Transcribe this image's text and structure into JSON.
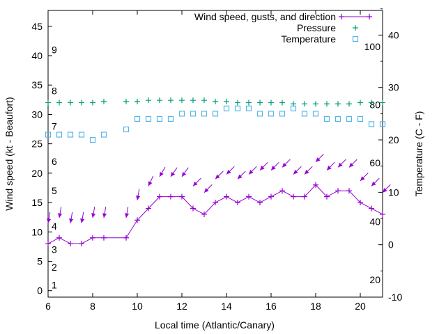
{
  "chart_data": {
    "type": "line",
    "xlabel": "Local time (Atlantic/Canary)",
    "ylabel": "Wind speed (kt - Beaufort)",
    "y2label": "Temperature (C - F)",
    "xlim": [
      6,
      21
    ],
    "ylim": [
      -1.1,
      47.7
    ],
    "y2lim": [
      -10,
      44.7
    ],
    "xticks": [
      6,
      8,
      10,
      12,
      14,
      16,
      18,
      20
    ],
    "yticks": [
      0,
      5,
      10,
      15,
      20,
      25,
      30,
      35,
      40,
      45
    ],
    "y2ticks": [
      -10,
      0,
      10,
      20,
      30,
      40
    ],
    "beaufort_labels": [
      {
        "label": "1",
        "kt": 1
      },
      {
        "label": "2",
        "kt": 4
      },
      {
        "label": "3",
        "kt": 7
      },
      {
        "label": "4",
        "kt": 11
      },
      {
        "label": "5",
        "kt": 17
      },
      {
        "label": "6",
        "kt": 22
      },
      {
        "label": "7",
        "kt": 28
      },
      {
        "label": "8",
        "kt": 34
      },
      {
        "label": "9",
        "kt": 41
      }
    ],
    "fahrenheit_labels": [
      {
        "label": "20",
        "c": -6.7
      },
      {
        "label": "40",
        "c": 4.4
      },
      {
        "label": "60",
        "c": 15.6
      },
      {
        "label": "80",
        "c": 26.7
      },
      {
        "label": "100",
        "c": 37.8
      }
    ],
    "legend": {
      "position": "top-right",
      "entries": [
        "Wind speed, gusts, and direction",
        "Pressure",
        "Temperature"
      ]
    },
    "colors": {
      "wind": "#9400d3",
      "pressure": "#009e73",
      "temperature": "#56b4e9"
    },
    "x": [
      6,
      6.5,
      7,
      7.5,
      8,
      8.5,
      9.5,
      10,
      10.5,
      11,
      11.5,
      12,
      12.5,
      13,
      13.5,
      14,
      14.5,
      15,
      15.5,
      16,
      16.5,
      17,
      17.5,
      18,
      18.5,
      19,
      19.5,
      20,
      20.5,
      21
    ],
    "series": [
      {
        "name": "Wind speed",
        "axis": "y",
        "values": [
          8,
          9,
          8,
          8,
          9,
          9,
          9,
          12,
          14,
          16,
          16,
          16,
          14,
          13,
          15,
          16,
          15,
          16,
          15,
          16,
          17,
          16,
          16,
          18,
          16,
          17,
          17,
          15,
          14,
          13
        ]
      },
      {
        "name": "Gusts",
        "axis": "y",
        "values": [
          11.5,
          12.4,
          11.5,
          11.5,
          12.4,
          12.4,
          12.4,
          15.4,
          17.8,
          19.4,
          19.4,
          19.4,
          17.8,
          16.7,
          19,
          19.8,
          19,
          19.8,
          20.5,
          20.5,
          21,
          19.8,
          19.8,
          21.9,
          20.5,
          21,
          21,
          18.7,
          17.8,
          16.7
        ]
      },
      {
        "name": "Direction",
        "unit": "deg-from",
        "values": [
          10,
          10,
          10,
          10,
          10,
          10,
          10,
          10,
          25,
          30,
          35,
          35,
          45,
          45,
          45,
          45,
          45,
          45,
          45,
          45,
          45,
          45,
          45,
          45,
          45,
          45,
          45,
          45,
          45,
          45
        ]
      },
      {
        "name": "Pressure",
        "axis": "y",
        "values": [
          32,
          32,
          32,
          32,
          32,
          32.2,
          32.2,
          32.2,
          32.4,
          32.4,
          32.4,
          32.4,
          32.4,
          32.4,
          32.2,
          32.2,
          32,
          32,
          32,
          32,
          32,
          31.8,
          31.8,
          31.8,
          31.8,
          31.8,
          31.8,
          32,
          32,
          32
        ]
      },
      {
        "name": "Temperature",
        "axis": "y2",
        "values": [
          21,
          21,
          21,
          21,
          20,
          21,
          22,
          24,
          24,
          24,
          24,
          25,
          25,
          25,
          25,
          26,
          26,
          26,
          25,
          25,
          25,
          26,
          25,
          25,
          24,
          24,
          24,
          24,
          23,
          23
        ]
      }
    ]
  }
}
